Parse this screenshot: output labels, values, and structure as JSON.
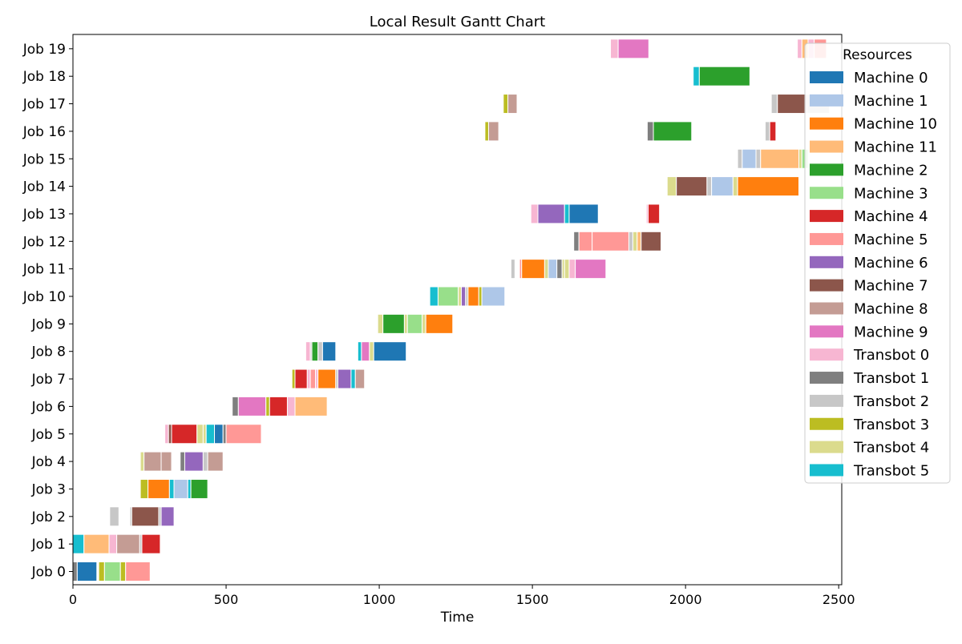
{
  "chart_data": {
    "type": "gantt",
    "title": "Local Result Gantt Chart",
    "xlabel": "Time",
    "ylabel": "",
    "xlim": [
      0,
      2510
    ],
    "xticks": [
      0,
      500,
      1000,
      1500,
      2000,
      2500
    ],
    "grid": false,
    "legend": {
      "title": "Resources",
      "placement": "right"
    },
    "jobs": [
      "Job 0",
      "Job 1",
      "Job 2",
      "Job 3",
      "Job 4",
      "Job 5",
      "Job 6",
      "Job 7",
      "Job 8",
      "Job 9",
      "Job 10",
      "Job 11",
      "Job 12",
      "Job 13",
      "Job 14",
      "Job 15",
      "Job 16",
      "Job 17",
      "Job 18",
      "Job 19"
    ],
    "resources": [
      {
        "name": "Machine 0",
        "color": "#1f77b4"
      },
      {
        "name": "Machine 1",
        "color": "#aec7e8"
      },
      {
        "name": "Machine 10",
        "color": "#ff7f0e"
      },
      {
        "name": "Machine 11",
        "color": "#ffbb78"
      },
      {
        "name": "Machine 2",
        "color": "#2ca02c"
      },
      {
        "name": "Machine 3",
        "color": "#98df8a"
      },
      {
        "name": "Machine 4",
        "color": "#d62728"
      },
      {
        "name": "Machine 5",
        "color": "#ff9896"
      },
      {
        "name": "Machine 6",
        "color": "#9467bd"
      },
      {
        "name": "Machine 7",
        "color": "#8c564b"
      },
      {
        "name": "Machine 8",
        "color": "#c49c94"
      },
      {
        "name": "Machine 9",
        "color": "#e377c2"
      },
      {
        "name": "Transbot 0",
        "color": "#f7b6d2"
      },
      {
        "name": "Transbot 1",
        "color": "#7f7f7f"
      },
      {
        "name": "Transbot 2",
        "color": "#c7c7c7"
      },
      {
        "name": "Transbot 3",
        "color": "#bcbd22"
      },
      {
        "name": "Transbot 4",
        "color": "#dbdb8d"
      },
      {
        "name": "Transbot 5",
        "color": "#17becf"
      }
    ],
    "tasks": [
      {
        "job": 0,
        "start": 0,
        "end": 14,
        "resource": "Transbot 1"
      },
      {
        "job": 0,
        "start": 14,
        "end": 78,
        "resource": "Machine 0"
      },
      {
        "job": 0,
        "start": 84,
        "end": 103,
        "resource": "Transbot 3"
      },
      {
        "job": 0,
        "start": 103,
        "end": 155,
        "resource": "Machine 3"
      },
      {
        "job": 0,
        "start": 155,
        "end": 172,
        "resource": "Transbot 3"
      },
      {
        "job": 0,
        "start": 172,
        "end": 252,
        "resource": "Machine 5"
      },
      {
        "job": 1,
        "start": 0,
        "end": 36,
        "resource": "Transbot 5"
      },
      {
        "job": 1,
        "start": 36,
        "end": 118,
        "resource": "Machine 11"
      },
      {
        "job": 1,
        "start": 118,
        "end": 143,
        "resource": "Transbot 0"
      },
      {
        "job": 1,
        "start": 143,
        "end": 218,
        "resource": "Machine 8"
      },
      {
        "job": 1,
        "start": 218,
        "end": 225,
        "resource": "Transbot 2"
      },
      {
        "job": 1,
        "start": 225,
        "end": 285,
        "resource": "Machine 4"
      },
      {
        "job": 2,
        "start": 120,
        "end": 150,
        "resource": "Transbot 2"
      },
      {
        "job": 2,
        "start": 186,
        "end": 192,
        "resource": "Transbot 2"
      },
      {
        "job": 2,
        "start": 192,
        "end": 280,
        "resource": "Machine 7"
      },
      {
        "job": 2,
        "start": 280,
        "end": 288,
        "resource": "Transbot 2"
      },
      {
        "job": 2,
        "start": 288,
        "end": 330,
        "resource": "Machine 6"
      },
      {
        "job": 3,
        "start": 220,
        "end": 245,
        "resource": "Transbot 3"
      },
      {
        "job": 3,
        "start": 245,
        "end": 315,
        "resource": "Machine 10"
      },
      {
        "job": 3,
        "start": 315,
        "end": 330,
        "resource": "Transbot 5"
      },
      {
        "job": 3,
        "start": 330,
        "end": 375,
        "resource": "Machine 1"
      },
      {
        "job": 3,
        "start": 375,
        "end": 385,
        "resource": "Transbot 5"
      },
      {
        "job": 3,
        "start": 385,
        "end": 440,
        "resource": "Machine 2"
      },
      {
        "job": 4,
        "start": 220,
        "end": 232,
        "resource": "Transbot 4"
      },
      {
        "job": 4,
        "start": 232,
        "end": 288,
        "resource": "Machine 8"
      },
      {
        "job": 4,
        "start": 288,
        "end": 322,
        "resource": "Machine 8"
      },
      {
        "job": 4,
        "start": 350,
        "end": 365,
        "resource": "Transbot 1"
      },
      {
        "job": 4,
        "start": 365,
        "end": 425,
        "resource": "Machine 6"
      },
      {
        "job": 4,
        "start": 425,
        "end": 440,
        "resource": "Transbot 2"
      },
      {
        "job": 4,
        "start": 440,
        "end": 490,
        "resource": "Machine 8"
      },
      {
        "job": 5,
        "start": 300,
        "end": 312,
        "resource": "Transbot 0"
      },
      {
        "job": 5,
        "start": 312,
        "end": 322,
        "resource": "Machine 7"
      },
      {
        "job": 5,
        "start": 322,
        "end": 405,
        "resource": "Machine 4"
      },
      {
        "job": 5,
        "start": 405,
        "end": 425,
        "resource": "Transbot 4"
      },
      {
        "job": 5,
        "start": 425,
        "end": 435,
        "resource": "Transbot 4"
      },
      {
        "job": 5,
        "start": 435,
        "end": 462,
        "resource": "Transbot 5"
      },
      {
        "job": 5,
        "start": 462,
        "end": 490,
        "resource": "Machine 0"
      },
      {
        "job": 5,
        "start": 490,
        "end": 500,
        "resource": "Transbot 1"
      },
      {
        "job": 5,
        "start": 500,
        "end": 615,
        "resource": "Machine 5"
      },
      {
        "job": 6,
        "start": 520,
        "end": 540,
        "resource": "Transbot 1"
      },
      {
        "job": 6,
        "start": 540,
        "end": 630,
        "resource": "Machine 9"
      },
      {
        "job": 6,
        "start": 630,
        "end": 642,
        "resource": "Transbot 3"
      },
      {
        "job": 6,
        "start": 642,
        "end": 700,
        "resource": "Machine 4"
      },
      {
        "job": 6,
        "start": 700,
        "end": 725,
        "resource": "Transbot 0"
      },
      {
        "job": 6,
        "start": 725,
        "end": 830,
        "resource": "Machine 11"
      },
      {
        "job": 7,
        "start": 715,
        "end": 725,
        "resource": "Transbot 3"
      },
      {
        "job": 7,
        "start": 725,
        "end": 765,
        "resource": "Machine 4"
      },
      {
        "job": 7,
        "start": 765,
        "end": 775,
        "resource": "Transbot 0"
      },
      {
        "job": 7,
        "start": 775,
        "end": 792,
        "resource": "Machine 5"
      },
      {
        "job": 7,
        "start": 792,
        "end": 800,
        "resource": "Transbot 0"
      },
      {
        "job": 7,
        "start": 800,
        "end": 858,
        "resource": "Machine 10"
      },
      {
        "job": 7,
        "start": 858,
        "end": 865,
        "resource": "Transbot 2"
      },
      {
        "job": 7,
        "start": 865,
        "end": 908,
        "resource": "Machine 6"
      },
      {
        "job": 7,
        "start": 908,
        "end": 922,
        "resource": "Transbot 5"
      },
      {
        "job": 7,
        "start": 922,
        "end": 952,
        "resource": "Machine 8"
      },
      {
        "job": 8,
        "start": 760,
        "end": 775,
        "resource": "Transbot 0"
      },
      {
        "job": 8,
        "start": 775,
        "end": 780,
        "resource": "Transbot 2"
      },
      {
        "job": 8,
        "start": 780,
        "end": 800,
        "resource": "Machine 2"
      },
      {
        "job": 8,
        "start": 800,
        "end": 815,
        "resource": "Transbot 2"
      },
      {
        "job": 8,
        "start": 815,
        "end": 858,
        "resource": "Machine 0"
      },
      {
        "job": 8,
        "start": 930,
        "end": 942,
        "resource": "Transbot 5"
      },
      {
        "job": 8,
        "start": 942,
        "end": 968,
        "resource": "Machine 9"
      },
      {
        "job": 8,
        "start": 968,
        "end": 982,
        "resource": "Transbot 4"
      },
      {
        "job": 8,
        "start": 982,
        "end": 1088,
        "resource": "Machine 0"
      },
      {
        "job": 9,
        "start": 995,
        "end": 1012,
        "resource": "Transbot 4"
      },
      {
        "job": 9,
        "start": 1012,
        "end": 1082,
        "resource": "Machine 2"
      },
      {
        "job": 9,
        "start": 1082,
        "end": 1092,
        "resource": "Transbot 4"
      },
      {
        "job": 9,
        "start": 1092,
        "end": 1140,
        "resource": "Machine 3"
      },
      {
        "job": 9,
        "start": 1140,
        "end": 1152,
        "resource": "Transbot 4"
      },
      {
        "job": 9,
        "start": 1152,
        "end": 1240,
        "resource": "Machine 10"
      },
      {
        "job": 10,
        "start": 1165,
        "end": 1192,
        "resource": "Transbot 5"
      },
      {
        "job": 10,
        "start": 1192,
        "end": 1258,
        "resource": "Machine 3"
      },
      {
        "job": 10,
        "start": 1258,
        "end": 1268,
        "resource": "Transbot 4"
      },
      {
        "job": 10,
        "start": 1268,
        "end": 1282,
        "resource": "Machine 6"
      },
      {
        "job": 10,
        "start": 1282,
        "end": 1290,
        "resource": "Transbot 2"
      },
      {
        "job": 10,
        "start": 1290,
        "end": 1325,
        "resource": "Machine 10"
      },
      {
        "job": 10,
        "start": 1325,
        "end": 1335,
        "resource": "Transbot 3"
      },
      {
        "job": 10,
        "start": 1335,
        "end": 1410,
        "resource": "Machine 1"
      },
      {
        "job": 11,
        "start": 1430,
        "end": 1443,
        "resource": "Transbot 2"
      },
      {
        "job": 11,
        "start": 1458,
        "end": 1465,
        "resource": "Machine 5"
      },
      {
        "job": 11,
        "start": 1465,
        "end": 1540,
        "resource": "Machine 10"
      },
      {
        "job": 11,
        "start": 1540,
        "end": 1552,
        "resource": "Transbot 4"
      },
      {
        "job": 11,
        "start": 1552,
        "end": 1580,
        "resource": "Machine 1"
      },
      {
        "job": 11,
        "start": 1580,
        "end": 1597,
        "resource": "Transbot 1"
      },
      {
        "job": 11,
        "start": 1597,
        "end": 1605,
        "resource": "Transbot 4"
      },
      {
        "job": 11,
        "start": 1605,
        "end": 1620,
        "resource": "Transbot 4"
      },
      {
        "job": 11,
        "start": 1620,
        "end": 1640,
        "resource": "Transbot 0"
      },
      {
        "job": 11,
        "start": 1640,
        "end": 1740,
        "resource": "Machine 9"
      },
      {
        "job": 12,
        "start": 1635,
        "end": 1652,
        "resource": "Transbot 1"
      },
      {
        "job": 12,
        "start": 1652,
        "end": 1695,
        "resource": "Machine 5"
      },
      {
        "job": 12,
        "start": 1695,
        "end": 1815,
        "resource": "Machine 5"
      },
      {
        "job": 12,
        "start": 1815,
        "end": 1828,
        "resource": "Transbot 2"
      },
      {
        "job": 12,
        "start": 1828,
        "end": 1842,
        "resource": "Transbot 4"
      },
      {
        "job": 12,
        "start": 1842,
        "end": 1855,
        "resource": "Machine 11"
      },
      {
        "job": 12,
        "start": 1855,
        "end": 1920,
        "resource": "Machine 7"
      },
      {
        "job": 13,
        "start": 1495,
        "end": 1518,
        "resource": "Transbot 0"
      },
      {
        "job": 13,
        "start": 1518,
        "end": 1605,
        "resource": "Machine 6"
      },
      {
        "job": 13,
        "start": 1605,
        "end": 1620,
        "resource": "Transbot 5"
      },
      {
        "job": 13,
        "start": 1620,
        "end": 1715,
        "resource": "Machine 0"
      },
      {
        "job": 13,
        "start": 1872,
        "end": 1878,
        "resource": "Transbot 0"
      },
      {
        "job": 13,
        "start": 1878,
        "end": 1915,
        "resource": "Machine 4"
      },
      {
        "job": 14,
        "start": 1940,
        "end": 1970,
        "resource": "Transbot 4"
      },
      {
        "job": 14,
        "start": 1970,
        "end": 2070,
        "resource": "Machine 7"
      },
      {
        "job": 14,
        "start": 2070,
        "end": 2085,
        "resource": "Transbot 2"
      },
      {
        "job": 14,
        "start": 2085,
        "end": 2155,
        "resource": "Machine 1"
      },
      {
        "job": 14,
        "start": 2155,
        "end": 2170,
        "resource": "Transbot 4"
      },
      {
        "job": 14,
        "start": 2170,
        "end": 2370,
        "resource": "Machine 10"
      },
      {
        "job": 15,
        "start": 2170,
        "end": 2185,
        "resource": "Transbot 2"
      },
      {
        "job": 15,
        "start": 2185,
        "end": 2230,
        "resource": "Machine 1"
      },
      {
        "job": 15,
        "start": 2230,
        "end": 2245,
        "resource": "Transbot 2"
      },
      {
        "job": 15,
        "start": 2245,
        "end": 2370,
        "resource": "Machine 11"
      },
      {
        "job": 15,
        "start": 2370,
        "end": 2380,
        "resource": "Transbot 4"
      },
      {
        "job": 15,
        "start": 2380,
        "end": 2400,
        "resource": "Machine 3"
      },
      {
        "job": 16,
        "start": 1345,
        "end": 1357,
        "resource": "Transbot 3"
      },
      {
        "job": 16,
        "start": 1357,
        "end": 1390,
        "resource": "Machine 8"
      },
      {
        "job": 16,
        "start": 1875,
        "end": 1895,
        "resource": "Transbot 1"
      },
      {
        "job": 16,
        "start": 1895,
        "end": 2020,
        "resource": "Machine 2"
      },
      {
        "job": 16,
        "start": 2260,
        "end": 2275,
        "resource": "Transbot 2"
      },
      {
        "job": 16,
        "start": 2275,
        "end": 2295,
        "resource": "Machine 4"
      },
      {
        "job": 17,
        "start": 1405,
        "end": 1420,
        "resource": "Transbot 3"
      },
      {
        "job": 17,
        "start": 1420,
        "end": 1450,
        "resource": "Machine 8"
      },
      {
        "job": 17,
        "start": 2280,
        "end": 2300,
        "resource": "Transbot 2"
      },
      {
        "job": 17,
        "start": 2300,
        "end": 2395,
        "resource": "Machine 7"
      },
      {
        "job": 17,
        "start": 2395,
        "end": 2470,
        "resource": "Transbot 2"
      },
      {
        "job": 18,
        "start": 2025,
        "end": 2045,
        "resource": "Transbot 5"
      },
      {
        "job": 18,
        "start": 2045,
        "end": 2210,
        "resource": "Machine 2"
      },
      {
        "job": 19,
        "start": 1755,
        "end": 1780,
        "resource": "Transbot 0"
      },
      {
        "job": 19,
        "start": 1780,
        "end": 1880,
        "resource": "Machine 9"
      },
      {
        "job": 19,
        "start": 2365,
        "end": 2380,
        "resource": "Transbot 0"
      },
      {
        "job": 19,
        "start": 2380,
        "end": 2400,
        "resource": "Machine 11"
      },
      {
        "job": 19,
        "start": 2400,
        "end": 2420,
        "resource": "Transbot 0"
      },
      {
        "job": 19,
        "start": 2420,
        "end": 2460,
        "resource": "Machine 5"
      }
    ]
  }
}
